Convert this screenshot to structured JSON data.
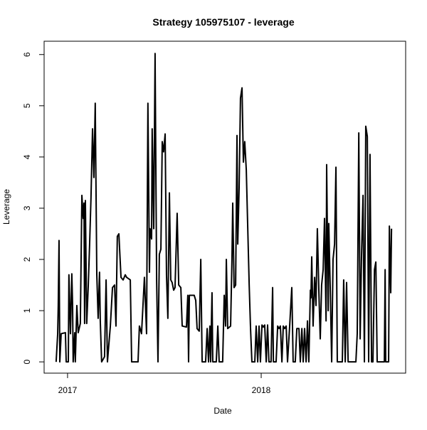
{
  "chart_data": {
    "type": "line",
    "title": "Strategy 105975107 - leverage",
    "x_label": "Date",
    "y_label": "Leverage",
    "color": "#000000",
    "x": [
      2016.941,
      2016.949,
      2016.952,
      2016.956,
      2016.96,
      2016.967,
      2016.989,
      2016.993,
      2017.004,
      2017.007,
      2017.015,
      2017.022,
      2017.026,
      2017.029,
      2017.037,
      2017.04,
      2017.048,
      2017.055,
      2017.066,
      2017.074,
      2017.081,
      2017.085,
      2017.088,
      2017.092,
      2017.099,
      2017.107,
      2017.114,
      2017.121,
      2017.129,
      2017.136,
      2017.143,
      2017.151,
      2017.158,
      2017.165,
      2017.169,
      2017.176,
      2017.191,
      2017.199,
      2017.206,
      2017.221,
      2017.232,
      2017.243,
      2017.25,
      2017.257,
      2017.265,
      2017.276,
      2017.287,
      2017.298,
      2017.305,
      2017.324,
      2017.331,
      2017.364,
      2017.371,
      2017.382,
      2017.397,
      2017.408,
      2017.415,
      2017.423,
      2017.426,
      2017.434,
      2017.437,
      2017.445,
      2017.452,
      2017.46,
      2017.467,
      2017.474,
      2017.482,
      2017.489,
      2017.496,
      2017.504,
      2017.511,
      2017.518,
      2017.526,
      2017.533,
      2017.54,
      2017.548,
      2017.555,
      2017.566,
      2017.574,
      2017.585,
      2017.592,
      2017.614,
      2017.621,
      2017.625,
      2017.629,
      2017.643,
      2017.654,
      2017.662,
      2017.669,
      2017.68,
      2017.688,
      2017.695,
      2017.713,
      2017.721,
      2017.728,
      2017.735,
      2017.739,
      2017.746,
      2017.75,
      2017.768,
      2017.776,
      2017.783,
      2017.801,
      2017.809,
      2017.816,
      2017.82,
      2017.827,
      2017.842,
      2017.849,
      2017.853,
      2017.86,
      2017.868,
      2017.875,
      2017.879,
      2017.886,
      2017.893,
      2017.901,
      2017.908,
      2017.915,
      2017.923,
      2017.93,
      2017.938,
      2017.945,
      2017.952,
      2017.967,
      2017.974,
      2017.982,
      2017.989,
      2017.996,
      2018.004,
      2018.011,
      2018.018,
      2018.026,
      2018.033,
      2018.04,
      2018.051,
      2018.059,
      2018.063,
      2018.077,
      2018.085,
      2018.092,
      2018.099,
      2018.107,
      2018.114,
      2018.121,
      2018.129,
      2018.136,
      2018.147,
      2018.158,
      2018.165,
      2018.176,
      2018.184,
      2018.195,
      2018.202,
      2018.21,
      2018.217,
      2018.224,
      2018.232,
      2018.239,
      2018.246,
      2018.254,
      2018.257,
      2018.261,
      2018.268,
      2018.276,
      2018.283,
      2018.29,
      2018.298,
      2018.305,
      2018.312,
      2018.32,
      2018.327,
      2018.335,
      2018.338,
      2018.346,
      2018.349,
      2018.357,
      2018.364,
      2018.371,
      2018.379,
      2018.386,
      2018.393,
      2018.408,
      2018.419,
      2018.426,
      2018.434,
      2018.441,
      2018.449,
      2018.489,
      2018.496,
      2018.504,
      2018.511,
      2018.518,
      2018.526,
      2018.533,
      2018.54,
      2018.548,
      2018.555,
      2018.562,
      2018.57,
      2018.577,
      2018.585,
      2018.592,
      2018.599,
      2018.636,
      2018.64,
      2018.643,
      2018.658,
      2018.662,
      2018.669,
      2018.673
    ],
    "values": [
      0,
      0.55,
      1.1,
      2.37,
      0,
      0.55,
      0.57,
      0,
      0,
      1.7,
      0.55,
      1.72,
      1.1,
      0,
      0.57,
      0,
      1.1,
      0.57,
      0.75,
      3.25,
      2.8,
      3.1,
      0.75,
      3.15,
      0.75,
      1.5,
      2.3,
      3.2,
      4.55,
      3.6,
      5.05,
      1.7,
      0.85,
      1.75,
      0.8,
      0,
      0.1,
      1.6,
      0,
      0.7,
      1.45,
      1.5,
      0.7,
      2.45,
      2.5,
      1.65,
      1.6,
      1.7,
      1.65,
      1.6,
      0,
      0,
      0.7,
      0.55,
      1.65,
      0.55,
      5.05,
      1.75,
      2.6,
      2.4,
      4.55,
      2.6,
      6.02,
      1.6,
      0,
      2.1,
      2.2,
      4.3,
      4.1,
      4.45,
      1.7,
      0.85,
      3.3,
      1.6,
      1.55,
      1.4,
      1.45,
      2.9,
      1.5,
      1.45,
      0.7,
      0.68,
      1.3,
      0,
      1.3,
      1.3,
      1.3,
      1.2,
      0.65,
      0.6,
      2.0,
      0,
      0,
      0.65,
      0,
      0.7,
      0,
      1.35,
      0,
      0,
      0.7,
      0,
      0,
      1.3,
      0.7,
      2.0,
      0.65,
      0.7,
      2.0,
      3.1,
      1.45,
      1.5,
      4.42,
      2.3,
      3.4,
      5.15,
      5.35,
      3.9,
      4.3,
      3.75,
      2.7,
      1.5,
      0.65,
      0,
      0,
      0.7,
      0,
      0.7,
      0,
      0.72,
      0.68,
      0.72,
      0,
      0.72,
      0,
      0,
      1.45,
      0,
      0,
      0.7,
      0.65,
      0.7,
      0,
      0.7,
      0.65,
      0.7,
      0,
      0.7,
      1.45,
      0,
      0,
      0.65,
      0.65,
      0,
      0.65,
      0,
      0.65,
      0,
      0.8,
      0,
      1.4,
      1.25,
      2.05,
      0.7,
      1.65,
      1.1,
      2.6,
      1.35,
      0.45,
      1.5,
      1.8,
      2.8,
      0.8,
      3.85,
      1.0,
      2.7,
      1.35,
      0,
      2.0,
      2.3,
      3.8,
      0,
      0,
      0,
      1.6,
      0,
      1.55,
      0,
      0,
      0.55,
      4.47,
      0.45,
      2.05,
      3.25,
      0,
      4.6,
      4.4,
      0,
      4.05,
      0,
      0,
      1.8,
      1.95,
      0,
      0,
      1.8,
      0,
      0,
      2.65,
      1.35,
      2.6
    ],
    "xlim": [
      2016.879,
      2018.746
    ],
    "xticks": [
      2017,
      2018
    ],
    "ylim": [
      -0.22,
      6.26
    ],
    "yticks": [
      0,
      1,
      2,
      3,
      4,
      5,
      6
    ]
  }
}
